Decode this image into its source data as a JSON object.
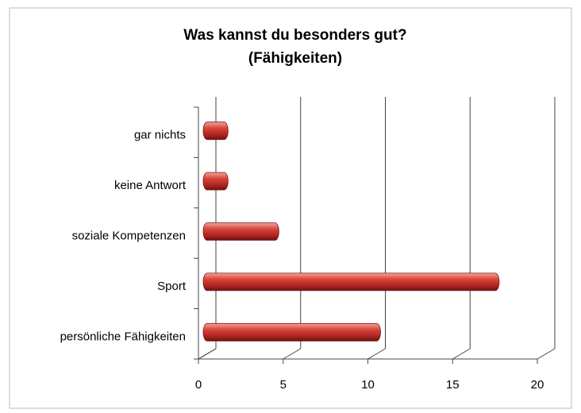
{
  "chart_data": {
    "type": "bar3d_horizontal",
    "title": [
      "Was kannst du besonders gut?",
      "(Fähigkeiten)"
    ],
    "categories": [
      "persönliche Fähigkeiten",
      "Sport",
      "soziale Kompetenzen",
      "keine Antwort",
      "gar nichts"
    ],
    "values": [
      10,
      17,
      4,
      1,
      1
    ],
    "color": "#c0392b",
    "xlim": [
      0,
      20
    ],
    "xticks": [
      0,
      5,
      10,
      15,
      20
    ],
    "grid": true
  }
}
